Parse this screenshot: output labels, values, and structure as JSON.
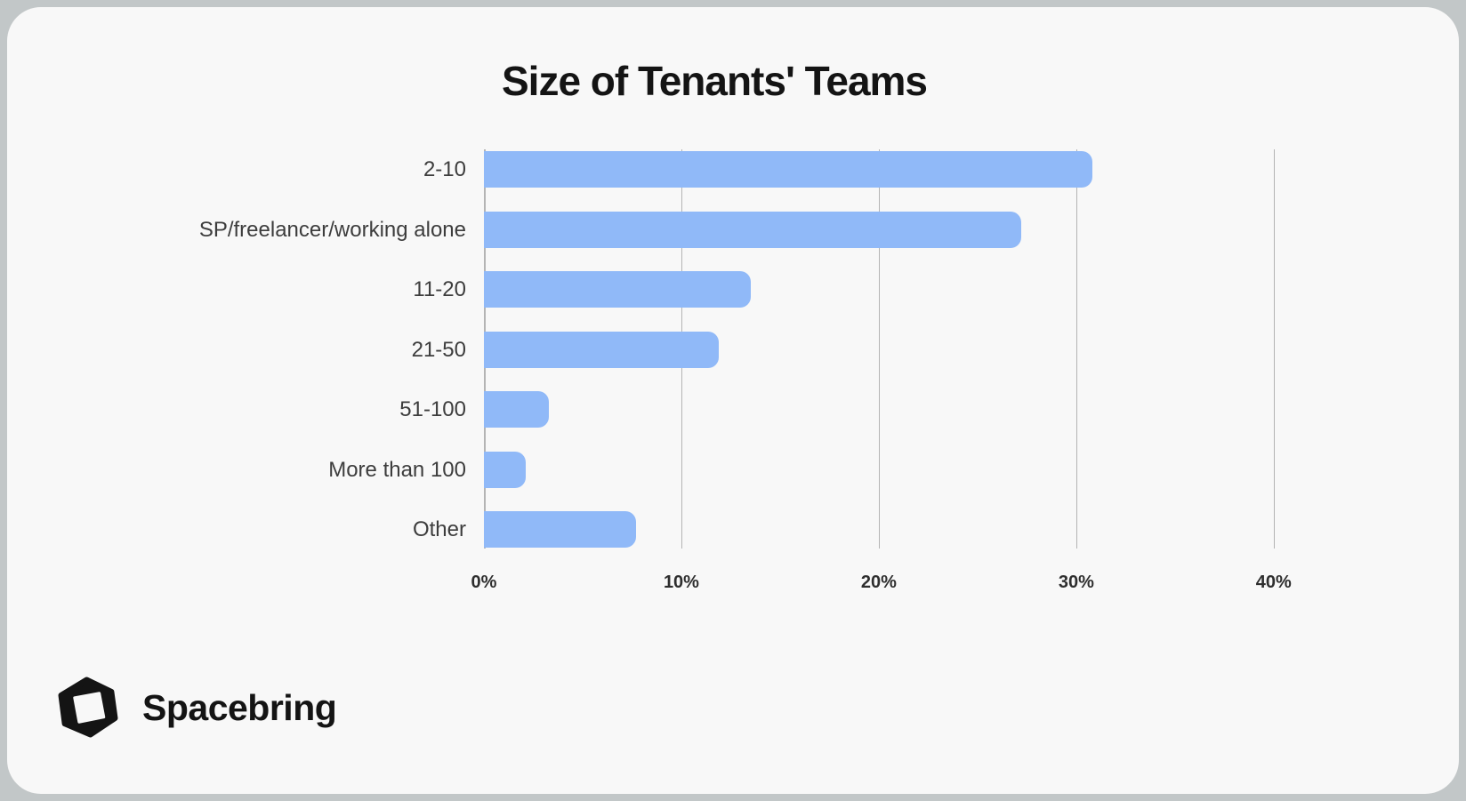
{
  "page": {
    "background_color": "#c2c7c8",
    "card_color": "#f8f8f8"
  },
  "chart_data": {
    "type": "bar",
    "orientation": "horizontal",
    "title": "Size of Tenants' Teams",
    "categories": [
      "2-10",
      "SP/freelancer/working alone",
      "11-20",
      "21-50",
      "51-100",
      "More than 100",
      "Other"
    ],
    "values": [
      30.8,
      27.2,
      13.5,
      11.9,
      3.3,
      2.1,
      7.7
    ],
    "unit": "%",
    "xlabel": "",
    "ylabel": "",
    "xlim": [
      0,
      46
    ],
    "x_ticks": [
      {
        "value": 0,
        "label": "0%"
      },
      {
        "value": 10,
        "label": "10%"
      },
      {
        "value": 20,
        "label": "20%"
      },
      {
        "value": 30,
        "label": "30%"
      },
      {
        "value": 40,
        "label": "40%"
      }
    ],
    "grid": "vertical-gridlines-on",
    "legend": "none",
    "bar_color": "#90b9f8",
    "gridline_color": "#b4b4b4"
  },
  "footer": {
    "brand_name": "Spacebring",
    "logo": "spacebring-cube-logo"
  }
}
